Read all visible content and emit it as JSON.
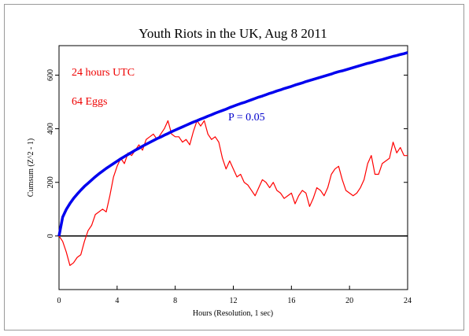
{
  "chart_data": {
    "type": "line",
    "title": "Youth Riots in the UK, Aug 8 2011",
    "xlabel": "Hours (Resolution, 1 sec)",
    "ylabel": "Cumsum (Z^2 - 1)",
    "annotations": [
      "24 hours UTC",
      "64 Eggs"
    ],
    "xlim": [
      0,
      24
    ],
    "xticks": [
      0,
      4,
      8,
      12,
      16,
      20,
      24
    ],
    "ylim": [
      -200,
      710
    ],
    "yticks": [
      0,
      200,
      400,
      600
    ],
    "zero_line": true,
    "x": [
      0,
      0.25,
      0.5,
      0.75,
      1,
      1.25,
      1.5,
      1.75,
      2,
      2.25,
      2.5,
      2.75,
      3,
      3.25,
      3.5,
      3.75,
      4,
      4.25,
      4.5,
      4.75,
      5,
      5.25,
      5.5,
      5.75,
      6,
      6.25,
      6.5,
      6.75,
      7,
      7.25,
      7.5,
      7.75,
      8,
      8.25,
      8.5,
      8.75,
      9,
      9.25,
      9.5,
      9.75,
      10,
      10.25,
      10.5,
      10.75,
      11,
      11.25,
      11.5,
      11.75,
      12,
      12.25,
      12.5,
      12.75,
      13,
      13.25,
      13.5,
      13.75,
      14,
      14.25,
      14.5,
      14.75,
      15,
      15.25,
      15.5,
      15.75,
      16,
      16.25,
      16.5,
      16.75,
      17,
      17.25,
      17.5,
      17.75,
      18,
      18.25,
      18.5,
      18.75,
      19,
      19.25,
      19.5,
      19.75,
      20,
      20.25,
      20.5,
      20.75,
      21,
      21.25,
      21.5,
      21.75,
      22,
      22.25,
      22.5,
      22.75,
      23,
      23.25,
      23.5,
      23.75,
      24
    ],
    "series": [
      {
        "color": "#ff0000",
        "width": 1.2,
        "values": [
          0,
          -20,
          -60,
          -110,
          -100,
          -80,
          -70,
          -20,
          20,
          40,
          80,
          90,
          100,
          90,
          150,
          220,
          260,
          290,
          270,
          310,
          300,
          320,
          340,
          320,
          360,
          370,
          380,
          360,
          380,
          400,
          430,
          380,
          370,
          370,
          350,
          360,
          340,
          390,
          430,
          410,
          430,
          380,
          360,
          370,
          350,
          290,
          250,
          280,
          250,
          220,
          230,
          200,
          190,
          170,
          150,
          180,
          210,
          200,
          180,
          200,
          170,
          160,
          140,
          150,
          160,
          120,
          150,
          170,
          160,
          110,
          140,
          180,
          170,
          150,
          180,
          230,
          250,
          260,
          210,
          170,
          160,
          150,
          160,
          180,
          210,
          270,
          300,
          230,
          230,
          270,
          280,
          290,
          350,
          310,
          330,
          300,
          300
        ]
      },
      {
        "name": "P = 0.05",
        "color": "#0000ee",
        "width": 3.5,
        "values": [
          0,
          70,
          99,
          121,
          140,
          156,
          171,
          185,
          197,
          209,
          221,
          232,
          242,
          252,
          261,
          270,
          279,
          288,
          296,
          304,
          312,
          320,
          327,
          335,
          342,
          349,
          356,
          363,
          369,
          376,
          382,
          389,
          395,
          401,
          407,
          413,
          419,
          425,
          430,
          436,
          441,
          447,
          452,
          458,
          463,
          468,
          473,
          479,
          484,
          489,
          494,
          498,
          503,
          508,
          513,
          518,
          522,
          527,
          532,
          536,
          541,
          545,
          550,
          554,
          558,
          563,
          567,
          571,
          576,
          580,
          584,
          588,
          592,
          596,
          600,
          604,
          609,
          613,
          616,
          620,
          624,
          628,
          632,
          636,
          640,
          644,
          647,
          651,
          655,
          658,
          662,
          666,
          670,
          673,
          677,
          680,
          684
        ]
      }
    ]
  }
}
